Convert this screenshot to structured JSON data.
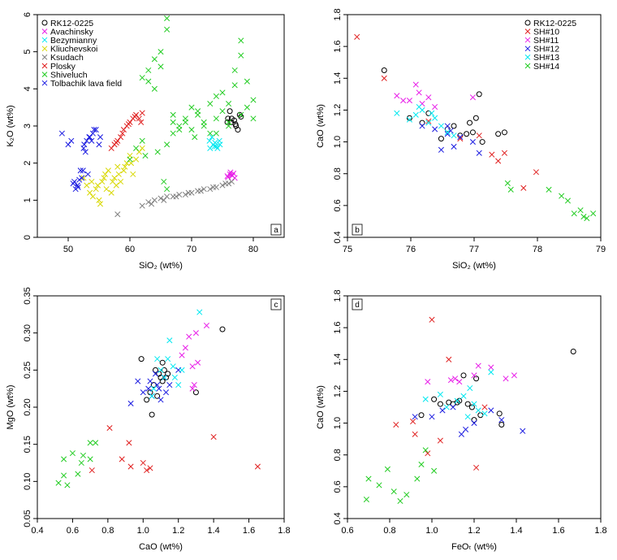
{
  "chart_data": [
    {
      "panel": "a",
      "type": "scatter",
      "xlabel": "SiO₂ (wt%)",
      "ylabel": "K₂O (wt%)",
      "xlim": [
        45,
        85
      ],
      "ylim": [
        0,
        6
      ],
      "xticks": [
        50,
        60,
        70,
        80
      ],
      "yticks": [
        0,
        1,
        2,
        3,
        4,
        5,
        6
      ],
      "legend_position": "top-left",
      "series": [
        {
          "name": "RK12-0225",
          "marker": "circle",
          "color": "#000000",
          "x": [
            75.8,
            76.5,
            77.2,
            77.8,
            76.2,
            77.5,
            76.9,
            78.0,
            77.1,
            76.4,
            75.9
          ],
          "y": [
            3.1,
            3.2,
            3.0,
            3.3,
            3.4,
            2.9,
            3.15,
            3.25,
            3.05,
            3.1,
            3.2
          ]
        },
        {
          "name": "Avachinsky",
          "marker": "x",
          "color": "#e81ee8",
          "x": [
            75.8,
            76.2,
            76.5,
            76.8,
            77.0,
            76.3,
            75.9,
            76.6
          ],
          "y": [
            1.65,
            1.7,
            1.68,
            1.72,
            1.6,
            1.75,
            1.62,
            1.66
          ]
        },
        {
          "name": "Bezymianny",
          "marker": "x",
          "color": "#00e8f0",
          "x": [
            73.0,
            73.5,
            74.0,
            74.5,
            73.8,
            74.2,
            73.3,
            74.6,
            72.9,
            73.7
          ],
          "y": [
            2.4,
            2.5,
            2.45,
            2.6,
            2.55,
            2.4,
            2.7,
            2.5,
            2.6,
            2.45
          ]
        },
        {
          "name": "Kliuchevskoi",
          "marker": "x",
          "color": "#d8d800",
          "x": [
            52.5,
            53.0,
            53.5,
            54.0,
            54.5,
            55.0,
            55.5,
            56.0,
            56.5,
            57.0,
            57.5,
            58.0,
            58.5,
            59.0,
            59.5,
            60.0,
            60.5,
            61.0,
            55.2,
            54.8,
            56.2,
            57.2,
            58.2,
            59.2,
            60.2,
            61.5,
            62.0,
            53.8,
            55.8,
            57.8
          ],
          "y": [
            1.6,
            1.4,
            1.2,
            1.1,
            1.3,
            1.0,
            1.5,
            1.7,
            1.8,
            1.2,
            1.6,
            1.9,
            1.5,
            1.8,
            2.0,
            2.2,
            1.7,
            2.1,
            0.9,
            1.4,
            1.3,
            1.5,
            1.7,
            1.9,
            2.0,
            2.3,
            2.4,
            1.5,
            1.6,
            1.4
          ]
        },
        {
          "name": "Ksudach",
          "marker": "x",
          "color": "#808080",
          "x": [
            58,
            62,
            63,
            64,
            65,
            66,
            67,
            68,
            69,
            70,
            71,
            72,
            73,
            74,
            75,
            76,
            76.5,
            63.5,
            65.5,
            67.5,
            69.5,
            71.5,
            73.5,
            75.5
          ],
          "y": [
            0.62,
            0.85,
            0.95,
            1.0,
            1.05,
            1.1,
            1.1,
            1.15,
            1.15,
            1.2,
            1.25,
            1.3,
            1.3,
            1.35,
            1.4,
            1.45,
            1.5,
            0.9,
            1.0,
            1.1,
            1.2,
            1.25,
            1.35,
            1.45
          ]
        },
        {
          "name": "Plosky",
          "marker": "x",
          "color": "#e02020",
          "x": [
            57.0,
            57.5,
            58.0,
            58.5,
            59.0,
            59.5,
            60.0,
            60.5,
            61.0,
            61.5,
            62.0,
            59.8,
            60.8,
            61.8,
            58.8,
            57.8
          ],
          "y": [
            2.4,
            2.5,
            2.6,
            2.7,
            2.9,
            3.0,
            3.1,
            3.2,
            3.3,
            3.2,
            3.35,
            3.05,
            3.25,
            3.1,
            2.8,
            2.55
          ]
        },
        {
          "name": "Shiveluch",
          "marker": "x",
          "color": "#22cc22",
          "x": [
            60,
            61,
            62,
            63,
            64,
            65,
            66,
            67,
            68,
            69,
            70,
            71,
            72,
            73,
            74,
            75,
            76,
            77,
            78,
            79,
            80,
            64,
            65,
            66,
            67,
            63,
            62,
            65.5,
            66,
            70,
            72,
            74,
            76,
            78,
            79,
            68,
            69,
            71,
            73,
            75,
            77,
            67,
            66,
            74,
            76,
            78,
            80,
            62.5,
            64.5,
            70.5
          ],
          "y": [
            2.1,
            2.4,
            2.6,
            4.5,
            4.8,
            5.0,
            5.9,
            2.8,
            3.0,
            3.2,
            3.5,
            3.3,
            3.0,
            3.6,
            3.8,
            3.4,
            3.1,
            4.5,
            5.3,
            4.2,
            3.2,
            4.0,
            4.6,
            5.6,
            3.1,
            4.2,
            4.3,
            1.5,
            1.3,
            2.9,
            3.1,
            3.2,
            3.0,
            3.3,
            3.5,
            2.9,
            3.1,
            3.4,
            2.8,
            3.9,
            4.1,
            3.3,
            2.5,
            2.8,
            3.6,
            4.9,
            3.7,
            2.2,
            2.3,
            2.7
          ]
        },
        {
          "name": "Tolbachik lava field",
          "marker": "x",
          "color": "#1a1ae0",
          "x": [
            49,
            50,
            50.5,
            51,
            51.5,
            52,
            52.5,
            53,
            53.5,
            54,
            54.5,
            55,
            51.2,
            52.2,
            53.2,
            54.2,
            55.2,
            50.8,
            51.8,
            52.8,
            53.8,
            52.4,
            53.4,
            51.6,
            52.6
          ],
          "y": [
            2.8,
            2.5,
            2.6,
            1.5,
            1.4,
            1.8,
            2.4,
            2.6,
            2.7,
            2.8,
            2.9,
            2.5,
            1.3,
            1.6,
            1.7,
            2.9,
            2.7,
            1.45,
            1.55,
            2.3,
            2.6,
            1.8,
            2.7,
            1.35,
            2.5
          ]
        }
      ]
    },
    {
      "panel": "b",
      "type": "scatter",
      "xlabel": "SiO₂ (wt%)",
      "ylabel": "CaO (wt%)",
      "xlim": [
        75,
        79
      ],
      "ylim": [
        0.4,
        1.8
      ],
      "xticks": [
        75,
        76,
        77,
        78,
        79
      ],
      "yticks": [
        0.4,
        0.6,
        0.8,
        1.0,
        1.2,
        1.4,
        1.6,
        1.8
      ],
      "legend_position": "top-right",
      "series": [
        {
          "name": "RK12-0225",
          "marker": "circle",
          "color": "#000000",
          "x": [
            75.58,
            75.98,
            76.18,
            76.28,
            76.48,
            76.58,
            76.68,
            76.88,
            76.98,
            77.03,
            77.08,
            77.13,
            77.38,
            77.48,
            76.93,
            76.78
          ],
          "y": [
            1.45,
            1.15,
            1.12,
            1.18,
            1.02,
            1.08,
            1.1,
            1.05,
            1.06,
            1.15,
            1.3,
            1.0,
            1.05,
            1.06,
            1.12,
            1.04
          ]
        },
        {
          "name": "SH#10",
          "marker": "x",
          "color": "#e02020",
          "x": [
            75.15,
            75.58,
            76.28,
            76.78,
            77.08,
            77.28,
            77.38,
            77.48,
            77.78,
            77.98
          ],
          "y": [
            1.66,
            1.4,
            1.13,
            1.02,
            1.04,
            0.92,
            0.88,
            0.93,
            0.71,
            0.81
          ]
        },
        {
          "name": "SH#11",
          "marker": "x",
          "color": "#e81ee8",
          "x": [
            75.78,
            75.88,
            75.98,
            76.08,
            76.18,
            76.28,
            76.38,
            76.98,
            76.13
          ],
          "y": [
            1.29,
            1.26,
            1.26,
            1.36,
            1.24,
            1.28,
            1.22,
            1.28,
            1.31
          ]
        },
        {
          "name": "SH#12",
          "marker": "x",
          "color": "#1a1ae0",
          "x": [
            76.18,
            76.38,
            76.58,
            76.58,
            76.68,
            76.78,
            76.98,
            77.08,
            76.48,
            76.63
          ],
          "y": [
            1.1,
            1.08,
            1.05,
            1.1,
            0.97,
            1.03,
            1.0,
            0.93,
            0.95,
            1.07
          ]
        },
        {
          "name": "SH#13",
          "marker": "x",
          "color": "#00e8f0",
          "x": [
            75.78,
            75.98,
            76.08,
            76.18,
            76.28,
            76.38,
            76.48,
            76.58,
            76.68,
            76.13,
            76.33
          ],
          "y": [
            1.18,
            1.14,
            1.17,
            1.2,
            1.12,
            1.15,
            1.1,
            1.06,
            1.04,
            1.22,
            1.18
          ]
        },
        {
          "name": "SH#14",
          "marker": "x",
          "color": "#22cc22",
          "x": [
            77.53,
            77.58,
            78.18,
            78.38,
            78.48,
            78.58,
            78.68,
            78.78,
            78.88,
            78.73
          ],
          "y": [
            0.74,
            0.7,
            0.7,
            0.66,
            0.63,
            0.55,
            0.57,
            0.52,
            0.55,
            0.53
          ]
        }
      ]
    },
    {
      "panel": "c",
      "type": "scatter",
      "xlabel": "CaO (wt%)",
      "ylabel": "MgO (wt%)",
      "xlim": [
        0.4,
        1.8
      ],
      "ylim": [
        0.05,
        0.35
      ],
      "xticks": [
        0.4,
        0.6,
        0.8,
        1.0,
        1.2,
        1.4,
        1.6,
        1.8
      ],
      "yticks": [
        0.05,
        0.1,
        0.15,
        0.2,
        0.25,
        0.3,
        0.35
      ],
      "series": [
        {
          "name": "RK12-0225",
          "marker": "circle",
          "color": "#000000",
          "x": [
            0.99,
            1.02,
            1.04,
            1.05,
            1.07,
            1.08,
            1.1,
            1.11,
            1.12,
            1.13,
            1.14,
            1.3,
            1.45,
            1.06,
            1.09,
            1.11
          ],
          "y": [
            0.265,
            0.21,
            0.22,
            0.19,
            0.25,
            0.215,
            0.24,
            0.235,
            0.25,
            0.24,
            0.245,
            0.22,
            0.305,
            0.23,
            0.245,
            0.26
          ]
        },
        {
          "name": "SH#10",
          "marker": "x",
          "color": "#e02020",
          "x": [
            0.71,
            0.81,
            0.88,
            0.92,
            0.93,
            1.0,
            1.02,
            1.04,
            1.4,
            1.65
          ],
          "y": [
            0.115,
            0.172,
            0.13,
            0.152,
            0.12,
            0.125,
            0.115,
            0.118,
            0.16,
            0.12
          ]
        },
        {
          "name": "SH#11",
          "marker": "x",
          "color": "#e81ee8",
          "x": [
            1.22,
            1.24,
            1.26,
            1.28,
            1.29,
            1.3,
            1.31,
            1.36,
            1.28
          ],
          "y": [
            0.27,
            0.28,
            0.295,
            0.255,
            0.23,
            0.3,
            0.26,
            0.31,
            0.225
          ]
        },
        {
          "name": "SH#12",
          "marker": "x",
          "color": "#1a1ae0",
          "x": [
            0.93,
            0.97,
            1.0,
            1.03,
            1.05,
            1.07,
            1.08,
            1.1,
            1.12,
            1.13,
            1.15,
            1.2,
            1.04,
            1.09
          ],
          "y": [
            0.205,
            0.235,
            0.22,
            0.225,
            0.215,
            0.245,
            0.23,
            0.21,
            0.24,
            0.22,
            0.23,
            0.25,
            0.235,
            0.225
          ]
        },
        {
          "name": "SH#13",
          "marker": "x",
          "color": "#00e8f0",
          "x": [
            1.05,
            1.08,
            1.1,
            1.12,
            1.15,
            1.17,
            1.18,
            1.2,
            1.22,
            1.32,
            1.14,
            1.06
          ],
          "y": [
            0.215,
            0.265,
            0.25,
            0.24,
            0.29,
            0.255,
            0.24,
            0.23,
            0.25,
            0.328,
            0.265,
            0.225
          ]
        },
        {
          "name": "SH#14",
          "marker": "x",
          "color": "#22cc22",
          "x": [
            0.52,
            0.55,
            0.57,
            0.55,
            0.6,
            0.63,
            0.65,
            0.66,
            0.7,
            0.73,
            0.7
          ],
          "y": [
            0.098,
            0.108,
            0.095,
            0.13,
            0.138,
            0.11,
            0.125,
            0.135,
            0.152,
            0.152,
            0.13
          ]
        }
      ]
    },
    {
      "panel": "d",
      "type": "scatter",
      "xlabel": "FeOₜ (wt%)",
      "ylabel": "CaO (wt%)",
      "xlim": [
        0.6,
        1.8
      ],
      "ylim": [
        0.4,
        1.8
      ],
      "xticks": [
        0.6,
        0.8,
        1.0,
        1.2,
        1.4,
        1.6,
        1.8
      ],
      "yticks": [
        0.4,
        0.6,
        0.8,
        1.0,
        1.2,
        1.4,
        1.6,
        1.8
      ],
      "series": [
        {
          "name": "RK12-0225",
          "marker": "circle",
          "color": "#000000",
          "x": [
            0.95,
            1.01,
            1.04,
            1.08,
            1.12,
            1.15,
            1.17,
            1.19,
            1.2,
            1.21,
            1.23,
            1.32,
            1.33,
            1.67,
            1.1,
            1.13
          ],
          "y": [
            1.05,
            1.15,
            1.12,
            1.13,
            1.13,
            1.3,
            1.12,
            1.1,
            1.02,
            1.28,
            1.05,
            1.06,
            0.99,
            1.45,
            1.12,
            1.14
          ]
        },
        {
          "name": "SH#10",
          "marker": "x",
          "color": "#e02020",
          "x": [
            0.83,
            0.91,
            0.92,
            0.98,
            1.0,
            1.04,
            1.08,
            1.21,
            1.25
          ],
          "y": [
            0.99,
            1.01,
            0.93,
            0.81,
            1.65,
            0.89,
            1.4,
            0.72,
            1.1
          ]
        },
        {
          "name": "SH#11",
          "marker": "x",
          "color": "#e81ee8",
          "x": [
            0.98,
            1.09,
            1.11,
            1.13,
            1.2,
            1.22,
            1.35,
            1.39,
            1.28
          ],
          "y": [
            1.26,
            1.27,
            1.28,
            1.26,
            1.3,
            1.36,
            1.28,
            1.3,
            1.35
          ]
        },
        {
          "name": "SH#12",
          "marker": "x",
          "color": "#1a1ae0",
          "x": [
            0.92,
            1.0,
            1.05,
            1.1,
            1.14,
            1.16,
            1.2,
            1.28,
            1.33,
            1.43
          ],
          "y": [
            1.04,
            1.04,
            1.08,
            1.1,
            0.93,
            0.96,
            1.0,
            1.08,
            1.02,
            0.95
          ]
        },
        {
          "name": "SH#13",
          "marker": "x",
          "color": "#00e8f0",
          "x": [
            0.97,
            1.04,
            1.07,
            1.12,
            1.15,
            1.18,
            1.2,
            1.22,
            1.25,
            1.28,
            1.17
          ],
          "y": [
            1.15,
            1.18,
            1.1,
            1.14,
            1.17,
            1.22,
            1.12,
            1.08,
            1.06,
            1.32,
            1.04
          ]
        },
        {
          "name": "SH#14",
          "marker": "x",
          "color": "#22cc22",
          "x": [
            0.69,
            0.7,
            0.75,
            0.79,
            0.82,
            0.85,
            0.88,
            0.93,
            0.95,
            0.97,
            1.01
          ],
          "y": [
            0.52,
            0.65,
            0.61,
            0.71,
            0.57,
            0.51,
            0.55,
            0.65,
            0.74,
            0.83,
            0.7
          ]
        }
      ]
    }
  ]
}
